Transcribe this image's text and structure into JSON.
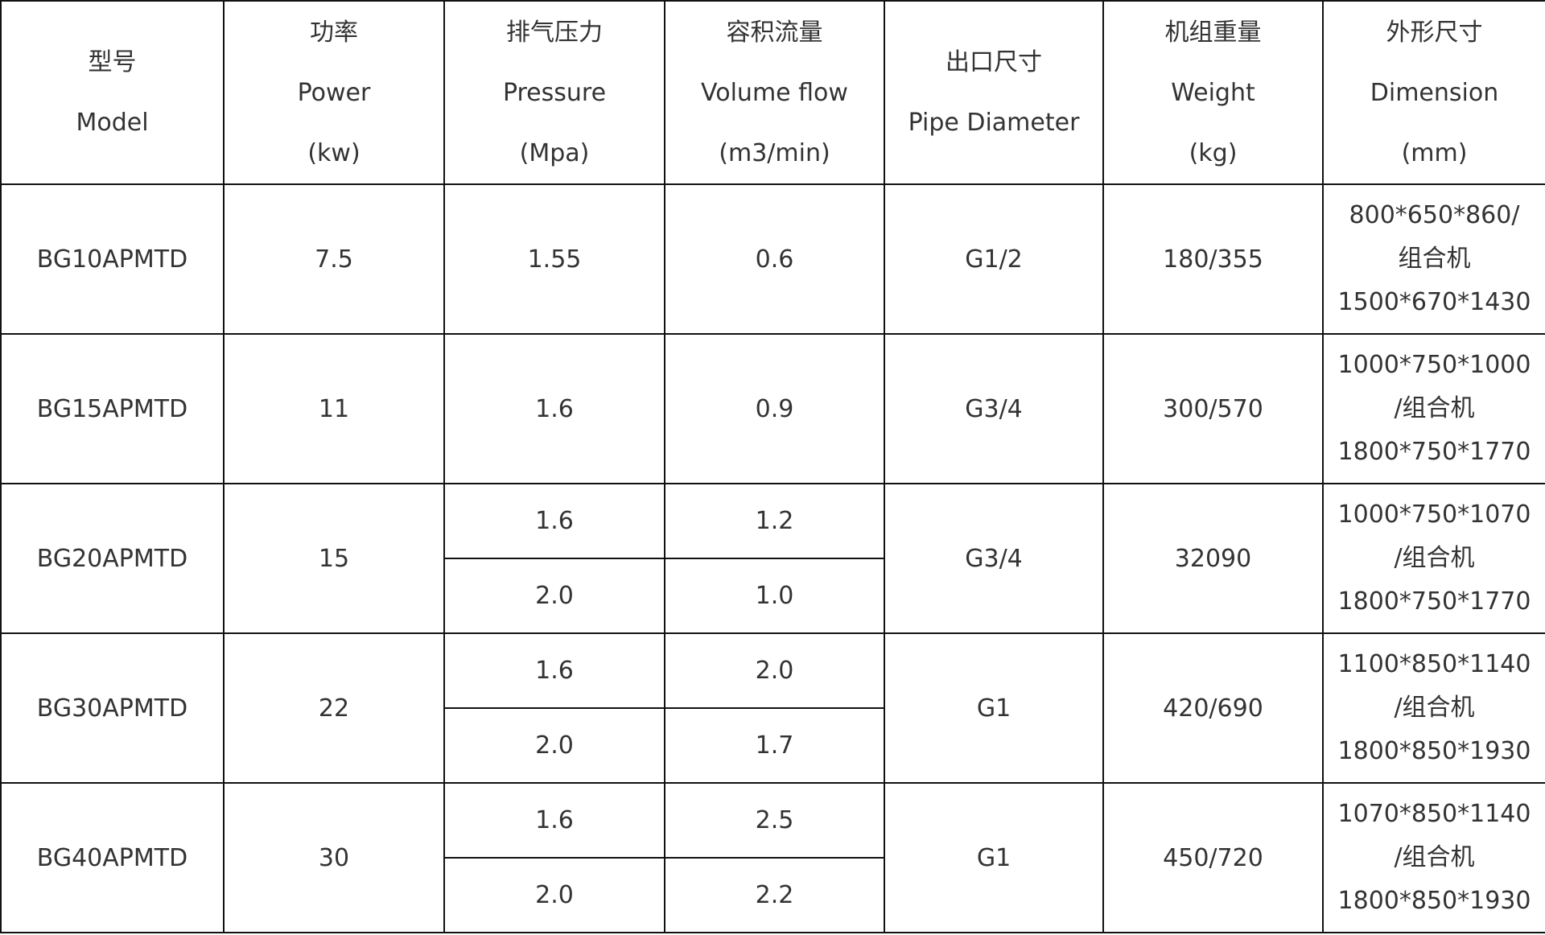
{
  "header": [
    {
      "zh": "型号",
      "en": "Model",
      "unit": ""
    },
    {
      "zh": "功率",
      "en": "Power",
      "unit": "(kw)"
    },
    {
      "zh": "排气压力",
      "en": "Pressure",
      "unit": "(Mpa)"
    },
    {
      "zh": "容积流量",
      "en": "Volume flow",
      "unit": "(m3/min)"
    },
    {
      "zh": "出口尺寸",
      "en": "Pipe Diameter",
      "unit": ""
    },
    {
      "zh": "机组重量",
      "en": "Weight",
      "unit": "(kg)"
    },
    {
      "zh": "外形尺寸",
      "en": "Dimension",
      "unit": "(mm)"
    }
  ],
  "rows": [
    {
      "model": "BG10APMTD",
      "power": "7.5",
      "pressure": [
        "1.55"
      ],
      "flow": [
        "0.6"
      ],
      "pipe": "G1/2",
      "weight": "180/355",
      "dim": [
        "800*650*860/",
        "组合机",
        "1500*670*1430"
      ]
    },
    {
      "model": "BG15APMTD",
      "power": "11",
      "pressure": [
        "1.6"
      ],
      "flow": [
        "0.9"
      ],
      "pipe": "G3/4",
      "weight": "300/570",
      "dim": [
        "1000*750*1000",
        "/组合机",
        "1800*750*1770"
      ]
    },
    {
      "model": "BG20APMTD",
      "power": "15",
      "pressure": [
        "1.6",
        "2.0"
      ],
      "flow": [
        "1.2",
        "1.0"
      ],
      "pipe": "G3/4",
      "weight": "32090",
      "dim": [
        "1000*750*1070",
        "/组合机",
        "1800*750*1770"
      ]
    },
    {
      "model": "BG30APMTD",
      "power": "22",
      "pressure": [
        "1.6",
        "2.0"
      ],
      "flow": [
        "2.0",
        "1.7"
      ],
      "pipe": "G1",
      "weight": "420/690",
      "dim": [
        "1100*850*1140",
        "/组合机",
        "1800*850*1930"
      ]
    },
    {
      "model": "BG40APMTD",
      "power": "30",
      "pressure": [
        "1.6",
        "2.0"
      ],
      "flow": [
        "2.5",
        "2.2"
      ],
      "pipe": "G1",
      "weight": "450/720",
      "dim": [
        "1070*850*1140",
        "/组合机",
        "1800*850*1930"
      ]
    }
  ]
}
